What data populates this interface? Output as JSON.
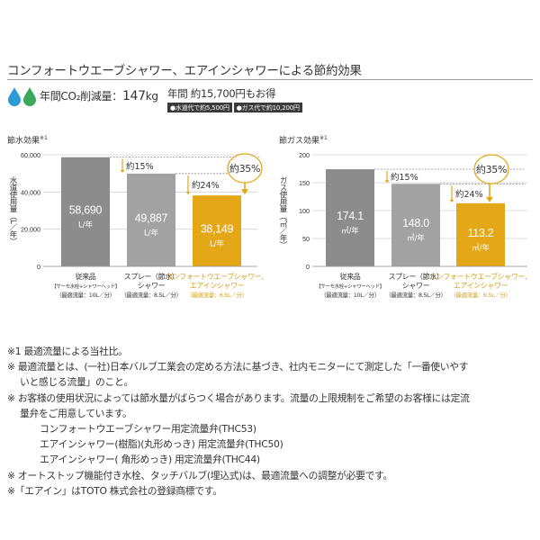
{
  "title": "コンフォートウエーブシャワー、エアインシャワーによる節約効果",
  "co2": {
    "label": "年間CO₂削減量：",
    "value": "147",
    "unit": "kg"
  },
  "savings": {
    "line1": "年間 約15,700円もお得",
    "water_note": "●水道代で約5,500円",
    "gas_note": "●ガス代で約10,200円"
  },
  "colors": {
    "gray_dark": "#8c8c8c",
    "gray_light": "#a2a2a2",
    "accent": "#e3a718",
    "accent_text": "#d8a01c",
    "drop_blue": "#2e9bd6",
    "drop_green": "#3aa85a"
  },
  "chart_data": [
    {
      "type": "bar",
      "title": "節水効果",
      "title_sup": "※1",
      "ylabel": "水道使用量（L／年）",
      "ylim": [
        0,
        60000
      ],
      "yticks": [
        0,
        20000,
        40000,
        60000
      ],
      "ytick_labels": [
        "0",
        "20,000",
        "40,000",
        "60,000"
      ],
      "categories": [
        "従来品",
        "スプレー（節水）シャワー",
        "コンフォートウエーブシャワー、エアインシャワー"
      ],
      "values": [
        58690,
        49887,
        38149
      ],
      "value_labels": [
        "58,690",
        "49,887",
        "38,149"
      ],
      "unit_label": "L/年",
      "annotations": {
        "small": "約15%",
        "mid": "約24%",
        "big": "約35%"
      },
      "category_lines": [
        [
          "従来品",
          "【サーモ水栓+シャワーヘッド】",
          "（最適流量：10L／分）"
        ],
        [
          "スプレー（節水）",
          "シャワー",
          "（最適流量：8.5L／分）"
        ],
        [
          "コンフォートウエーブシャワー、",
          "エアインシャワー",
          "（最適流量：6.5L／分）"
        ]
      ]
    },
    {
      "type": "bar",
      "title": "節ガス効果",
      "title_sup": "※1",
      "ylabel": "ガス使用量（㎥／年）",
      "ylim": [
        0,
        200
      ],
      "yticks": [
        0,
        50,
        100,
        150,
        200
      ],
      "ytick_labels": [
        "0",
        "50",
        "100",
        "150",
        "200"
      ],
      "categories": [
        "従来品",
        "スプレー（節水）シャワー",
        "コンフォートウエーブシャワー、エアインシャワー"
      ],
      "values": [
        174.1,
        148.0,
        113.2
      ],
      "value_labels": [
        "174.1",
        "148.0",
        "113.2"
      ],
      "unit_label": "㎥/年",
      "annotations": {
        "small": "約15%",
        "mid": "約24%",
        "big": "約35%"
      },
      "category_lines": [
        [
          "従来品",
          "【サーモ水栓+シャワーヘッド】",
          "（最適流量：10L／分）"
        ],
        [
          "スプレー（節水）",
          "シャワー",
          "（最適流量：8.5L／分）"
        ],
        [
          "コンフォートウエーブシャワー、",
          "エアインシャワー",
          "（最適流量：6.5L／分）"
        ]
      ]
    }
  ],
  "notes": [
    {
      "text": "※1 最適流量による当社比。",
      "indent": 0
    },
    {
      "text": "※ 最適流量とは、(一社)日本バルブ工業会の定める方法に基づき、社内モニターにて測定した「一番使いやす",
      "indent": 0
    },
    {
      "text": "いと感じる流量」のこと。",
      "indent": 1
    },
    {
      "text": "※ お客様の使用状況によっては節水量がばらつく場合があります。流量の上限規制をご希望のお客様には定流",
      "indent": 0
    },
    {
      "text": "量弁をご用意しています。",
      "indent": 1
    },
    {
      "text": "コンフォートウエーブシャワー用定流量弁(THC53)",
      "indent": 2
    },
    {
      "text": "エアインシャワー(樹脂)(丸形めっき) 用定流量弁(THC50)",
      "indent": 2
    },
    {
      "text": "エアインシャワー( 角形めっき) 用定流量弁(THC44)",
      "indent": 2
    },
    {
      "text": "※ オートストップ機能付き水栓、タッチバルブ(埋込式)は、最適流量への調整が必要です。",
      "indent": 0
    },
    {
      "text": "※「エアイン」はTOTO 株式会社の登録商標です。",
      "indent": 0
    }
  ]
}
